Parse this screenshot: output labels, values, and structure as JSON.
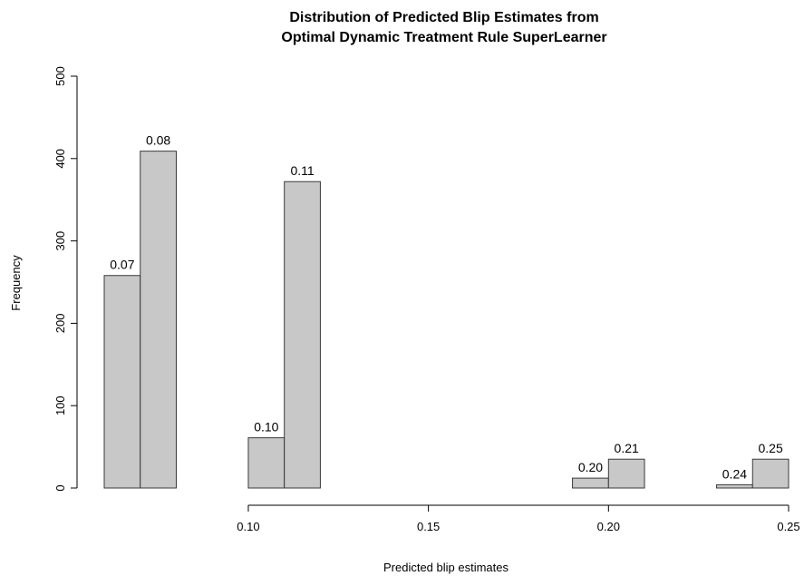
{
  "chart_data": {
    "type": "bar",
    "title_line1": "Distribution of Predicted Blip Estimates from",
    "title_line2": "Optimal Dynamic Treatment Rule SuperLearner",
    "xlabel": "Predicted blip estimates",
    "ylabel": "Frequency",
    "xlim": [
      0.06,
      0.25
    ],
    "ylim": [
      0,
      500
    ],
    "bin_width": 0.01,
    "bins": [
      {
        "start": 0.06,
        "end": 0.07,
        "value": 258,
        "label": "0.07"
      },
      {
        "start": 0.07,
        "end": 0.08,
        "value": 409,
        "label": "0.08"
      },
      {
        "start": 0.08,
        "end": 0.09,
        "value": 0,
        "label": ""
      },
      {
        "start": 0.09,
        "end": 0.1,
        "value": 0,
        "label": ""
      },
      {
        "start": 0.1,
        "end": 0.11,
        "value": 61,
        "label": "0.10"
      },
      {
        "start": 0.11,
        "end": 0.12,
        "value": 372,
        "label": "0.11"
      },
      {
        "start": 0.12,
        "end": 0.13,
        "value": 0,
        "label": ""
      },
      {
        "start": 0.13,
        "end": 0.14,
        "value": 0,
        "label": ""
      },
      {
        "start": 0.14,
        "end": 0.15,
        "value": 0,
        "label": ""
      },
      {
        "start": 0.15,
        "end": 0.16,
        "value": 0,
        "label": ""
      },
      {
        "start": 0.16,
        "end": 0.17,
        "value": 0,
        "label": ""
      },
      {
        "start": 0.17,
        "end": 0.18,
        "value": 0,
        "label": ""
      },
      {
        "start": 0.18,
        "end": 0.19,
        "value": 0,
        "label": ""
      },
      {
        "start": 0.19,
        "end": 0.2,
        "value": 12,
        "label": "0.20"
      },
      {
        "start": 0.2,
        "end": 0.21,
        "value": 35,
        "label": "0.21"
      },
      {
        "start": 0.21,
        "end": 0.22,
        "value": 0,
        "label": ""
      },
      {
        "start": 0.22,
        "end": 0.23,
        "value": 0,
        "label": ""
      },
      {
        "start": 0.23,
        "end": 0.24,
        "value": 4,
        "label": "0.24"
      },
      {
        "start": 0.24,
        "end": 0.25,
        "value": 35,
        "label": "0.25"
      }
    ],
    "x_ticks": [
      0.1,
      0.15,
      0.2,
      0.25
    ],
    "x_tick_labels": [
      "0.10",
      "0.15",
      "0.20",
      "0.25"
    ],
    "y_ticks": [
      0,
      100,
      200,
      300,
      400,
      500
    ],
    "y_tick_labels": [
      "0",
      "100",
      "200",
      "300",
      "400",
      "500"
    ],
    "x_axis_start": 0.1,
    "grid": false,
    "bar_color": "#c8c8c8",
    "bar_border_color": "#3a3a3a"
  }
}
